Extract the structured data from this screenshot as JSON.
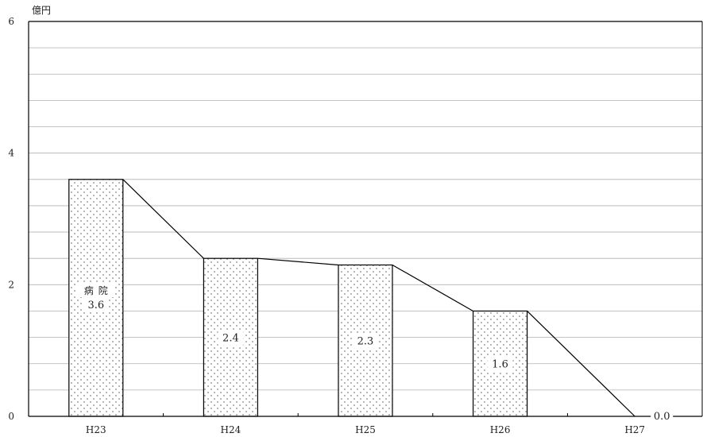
{
  "chart_data": {
    "type": "bar",
    "unit": "億円",
    "categories": [
      "H23",
      "H24",
      "H25",
      "H26",
      "H27"
    ],
    "series": [
      {
        "name": "病院",
        "values": [
          3.6,
          2.4,
          2.3,
          1.6,
          0.0
        ]
      }
    ],
    "data_labels": [
      "3.6",
      "2.4",
      "2.3",
      "1.6",
      "0.0"
    ],
    "ylim": [
      0,
      6
    ],
    "yticks": [
      0,
      2,
      4,
      6
    ],
    "ytick_labels": [
      "0",
      "2",
      "4",
      "6"
    ],
    "minor_grid_step": 0.4,
    "grid": true,
    "connector_line": true,
    "bar_fill": "dotted",
    "colors": {
      "bar_border": "#000000",
      "dot": "#555555",
      "grid": "#b0b0b0",
      "axis": "#000000"
    }
  }
}
